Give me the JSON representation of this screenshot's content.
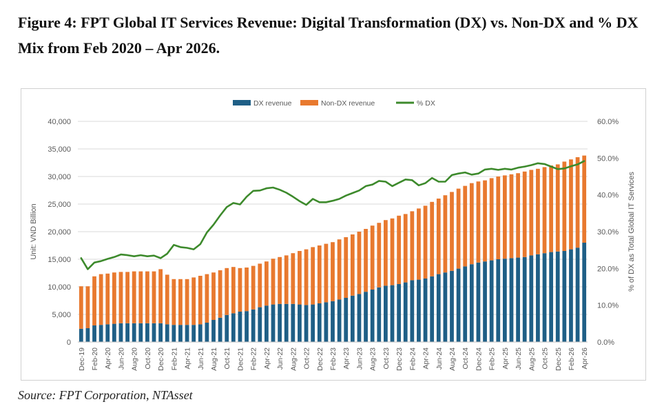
{
  "figure": {
    "title": "Figure 4: FPT Global IT Services Revenue: Digital Transformation (DX) vs. Non-DX and % DX Mix from Feb 2020 – Apr 2026.",
    "source": "Source: FPT Corporation, NTAsset"
  },
  "colors": {
    "dx": "#1f5f86",
    "non_dx": "#e8792f",
    "pct_dx": "#3d8a2c",
    "grid": "#d9d9d9",
    "axis_text": "#595959"
  },
  "chart_data": {
    "type": "bar",
    "stacked": true,
    "title": "",
    "ylabel": "Unit: VND Billion",
    "y2label": "% of DX as Total Global IT Services",
    "ylim": [
      0,
      40000
    ],
    "y2lim": [
      0,
      60
    ],
    "yticks": [
      "0",
      "5,000",
      "10,000",
      "15,000",
      "20,000",
      "25,000",
      "30,000",
      "35,000",
      "40,000"
    ],
    "y2ticks": [
      "0.0%",
      "10.0%",
      "20.0%",
      "30.0%",
      "40.0%",
      "50.0%",
      "60.0%"
    ],
    "grid": true,
    "legend_position": "top-center",
    "x_tick_labels": [
      "Dec-19",
      "Feb-20",
      "Apr-20",
      "Jun-20",
      "Aug-20",
      "Oct-20",
      "Dec-20",
      "Feb-21",
      "Apr-21",
      "Jun-21",
      "Aug-21",
      "Oct-21",
      "Dec-21",
      "Feb-22",
      "Apr-22",
      "Jun-22",
      "Aug-22",
      "Oct-22",
      "Dec-22",
      "Feb-23",
      "Apr-23",
      "Jun-23",
      "Aug-23",
      "Oct-23",
      "Dec-23",
      "Feb-24",
      "Apr-24",
      "Jun-24",
      "Aug-24",
      "Oct-24",
      "Dec-24",
      "Feb-25",
      "Apr-25",
      "Jun-25",
      "Aug-25",
      "Oct-25",
      "Dec-25",
      "Feb-26",
      "Apr-26"
    ],
    "categories": [
      "Dec-19",
      "Jan-20",
      "Feb-20",
      "Mar-20",
      "Apr-20",
      "May-20",
      "Jun-20",
      "Jul-20",
      "Aug-20",
      "Sep-20",
      "Oct-20",
      "Nov-20",
      "Dec-20",
      "Jan-21",
      "Feb-21",
      "Mar-21",
      "Apr-21",
      "May-21",
      "Jun-21",
      "Jul-21",
      "Aug-21",
      "Sep-21",
      "Oct-21",
      "Nov-21",
      "Dec-21",
      "Jan-22",
      "Feb-22",
      "Mar-22",
      "Apr-22",
      "May-22",
      "Jun-22",
      "Jul-22",
      "Aug-22",
      "Sep-22",
      "Oct-22",
      "Nov-22",
      "Dec-22",
      "Jan-23",
      "Feb-23",
      "Mar-23",
      "Apr-23",
      "May-23",
      "Jun-23",
      "Jul-23",
      "Aug-23",
      "Sep-23",
      "Oct-23",
      "Nov-23",
      "Dec-23",
      "Jan-24",
      "Feb-24",
      "Mar-24",
      "Apr-24",
      "May-24",
      "Jun-24",
      "Jul-24",
      "Aug-24",
      "Sep-24",
      "Oct-24",
      "Nov-24",
      "Dec-24",
      "Jan-25",
      "Feb-25",
      "Mar-25",
      "Apr-25",
      "May-25",
      "Jun-25",
      "Jul-25",
      "Aug-25",
      "Sep-25",
      "Oct-25",
      "Nov-25",
      "Dec-25",
      "Jan-26",
      "Feb-26",
      "Mar-26",
      "Apr-26"
    ],
    "series": [
      {
        "name": "DX revenue",
        "kind": "bar",
        "axis": "left",
        "values": [
          2400,
          2500,
          3000,
          3100,
          3200,
          3300,
          3400,
          3400,
          3400,
          3400,
          3400,
          3400,
          3400,
          3200,
          3100,
          3100,
          3100,
          3100,
          3200,
          3500,
          4000,
          4400,
          4900,
          5200,
          5500,
          5600,
          5900,
          6300,
          6600,
          6800,
          6900,
          6900,
          6900,
          6800,
          6700,
          6800,
          7000,
          7200,
          7400,
          7700,
          8000,
          8400,
          8700,
          9100,
          9500,
          9900,
          10200,
          10300,
          10500,
          10800,
          11200,
          11300,
          11500,
          11900,
          12300,
          12600,
          12900,
          13300,
          13700,
          14100,
          14400,
          14600,
          14800,
          15000,
          15100,
          15200,
          15300,
          15400,
          15700,
          15900,
          16100,
          16300,
          16400,
          16500,
          16800,
          17100,
          18000
        ]
      },
      {
        "name": "Non-DX revenue",
        "kind": "bar",
        "axis": "left",
        "values": [
          7700,
          7600,
          8900,
          9200,
          9200,
          9300,
          9300,
          9300,
          9400,
          9400,
          9400,
          9400,
          9800,
          9000,
          8300,
          8300,
          8300,
          8600,
          8800,
          8800,
          8600,
          8600,
          8500,
          8400,
          7900,
          7900,
          7900,
          7900,
          8000,
          8300,
          8500,
          8800,
          9200,
          9700,
          10100,
          10400,
          10500,
          10600,
          10700,
          10900,
          11000,
          11100,
          11300,
          11400,
          11600,
          11700,
          11900,
          12100,
          12400,
          12400,
          12500,
          12900,
          13200,
          13500,
          13700,
          14000,
          14300,
          14500,
          14600,
          14700,
          14700,
          14700,
          14900,
          15000,
          15100,
          15200,
          15300,
          15500,
          15500,
          15500,
          15600,
          15700,
          15800,
          16200,
          16300,
          16400,
          15800
        ]
      },
      {
        "name": "% DX",
        "kind": "line",
        "axis": "right",
        "values": [
          22.8,
          19.8,
          21.6,
          22.0,
          22.6,
          23.1,
          23.8,
          23.6,
          23.3,
          23.6,
          23.3,
          23.5,
          22.8,
          24.0,
          26.4,
          25.8,
          25.6,
          25.2,
          26.6,
          29.8,
          31.9,
          34.4,
          36.7,
          37.8,
          37.4,
          39.5,
          41.1,
          41.2,
          41.8,
          42.0,
          41.4,
          40.6,
          39.5,
          38.3,
          37.3,
          38.9,
          38.0,
          38.0,
          38.4,
          38.9,
          39.8,
          40.5,
          41.2,
          42.4,
          42.8,
          43.8,
          43.6,
          42.4,
          43.3,
          44.2,
          44.0,
          42.6,
          43.2,
          44.6,
          43.6,
          43.6,
          45.4,
          45.8,
          46.1,
          45.5,
          45.8,
          46.9,
          47.1,
          46.8,
          47.1,
          46.9,
          47.4,
          47.7,
          48.1,
          48.6,
          48.4,
          47.7,
          47.0,
          47.2,
          47.8,
          48.3,
          49.2
        ]
      }
    ]
  }
}
